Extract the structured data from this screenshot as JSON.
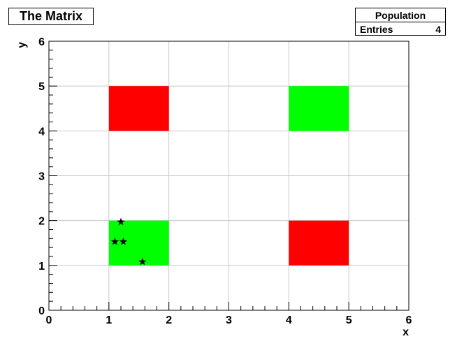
{
  "title": "The Matrix",
  "stats": {
    "name": "Population",
    "entries_label": "Entries",
    "entries_value": "4"
  },
  "chart_data": {
    "type": "heatmap",
    "title": "The Matrix",
    "xlabel": "x",
    "ylabel": "y",
    "xlim": [
      0,
      6
    ],
    "ylim": [
      0,
      6
    ],
    "xticks": [
      "0",
      "1",
      "2",
      "3",
      "4",
      "5",
      "6"
    ],
    "yticks": [
      "0",
      "1",
      "2",
      "3",
      "4",
      "5",
      "6"
    ],
    "grid": true,
    "cells": [
      {
        "x": [
          1,
          2
        ],
        "y": [
          4,
          5
        ],
        "color": "#ff0000"
      },
      {
        "x": [
          4,
          5
        ],
        "y": [
          4,
          5
        ],
        "color": "#00ff00"
      },
      {
        "x": [
          1,
          2
        ],
        "y": [
          1,
          2
        ],
        "color": "#00ff00"
      },
      {
        "x": [
          4,
          5
        ],
        "y": [
          1,
          2
        ],
        "color": "#ff0000"
      }
    ],
    "points": [
      {
        "x": 1.2,
        "y": 1.97
      },
      {
        "x": 1.1,
        "y": 1.53
      },
      {
        "x": 1.24,
        "y": 1.53
      },
      {
        "x": 1.56,
        "y": 1.08
      }
    ],
    "marker": "star",
    "marker_color": "#000000"
  }
}
